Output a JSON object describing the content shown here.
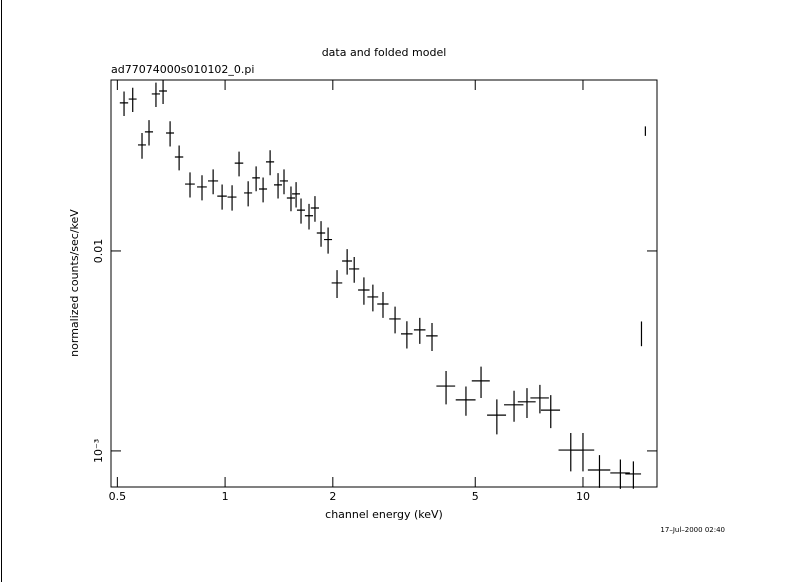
{
  "chart_data": {
    "type": "errorbar",
    "title": "data and folded model",
    "subtitle": "ad77074000s010102_0.pi",
    "x_label": "channel energy (keV)",
    "y_label": "normalized counts/sec/keV",
    "annotation": "17–Jul–2000 02:40",
    "x_log": true,
    "y_log": true,
    "color": "#000000",
    "xlim": [
      0.48,
      16.1
    ],
    "ylim": [
      0.00066,
      0.0716
    ],
    "xticks": [
      0.5,
      1,
      2,
      5,
      10
    ],
    "yticks": [
      0.01,
      {
        "value": 0.001,
        "label": "10⁻³"
      }
    ],
    "x": [
      0.522,
      0.552,
      0.586,
      0.613,
      0.641,
      0.671,
      0.702,
      0.744,
      0.798,
      0.862,
      0.926,
      0.981,
      1.046,
      1.094,
      1.16,
      1.221,
      1.277,
      1.336,
      1.406,
      1.461,
      1.528,
      1.579,
      1.63,
      1.716,
      1.783,
      1.854,
      1.94,
      2.055,
      2.193,
      2.295,
      2.443,
      2.588,
      2.762,
      2.985,
      3.221,
      3.5,
      3.786,
      4.144,
      4.71,
      5.19,
      5.746,
      6.418,
      6.975,
      7.58,
      8.128,
      9.245,
      10.0,
      11.12,
      12.72,
      13.83,
      14.94,
      14.57
    ],
    "xerr": [
      0.014,
      0.014,
      0.015,
      0.016,
      0.017,
      0.017,
      0.018,
      0.02,
      0.025,
      0.027,
      0.03,
      0.03,
      0.03,
      0.03,
      0.03,
      0.03,
      0.033,
      0.035,
      0.036,
      0.038,
      0.04,
      0.04,
      0.042,
      0.045,
      0.047,
      0.05,
      0.05,
      0.07,
      0.07,
      0.075,
      0.09,
      0.09,
      0.1,
      0.11,
      0.12,
      0.13,
      0.14,
      0.25,
      0.3,
      0.3,
      0.35,
      0.4,
      0.4,
      0.45,
      0.5,
      0.7,
      0.75,
      0.8,
      0.8,
      0.7,
      0.02,
      0
    ],
    "values": [
      0.055,
      0.0575,
      0.0339,
      0.0394,
      0.061,
      0.0631,
      0.0389,
      0.0295,
      0.0216,
      0.0209,
      0.0224,
      0.0188,
      0.0186,
      0.0275,
      0.0195,
      0.0232,
      0.0204,
      0.0279,
      0.0214,
      0.0224,
      0.0184,
      0.0193,
      0.016,
      0.015,
      0.0164,
      0.0123,
      0.0114,
      0.00692,
      0.00891,
      0.00813,
      0.00638,
      0.00589,
      0.00543,
      0.00457,
      0.00385,
      0.00403,
      0.00376,
      0.00211,
      0.0018,
      0.00224,
      0.00151,
      0.0017,
      0.00176,
      0.00184,
      0.0016,
      0.00101,
      0.00101,
      0.000803,
      0.000776,
      0.000767,
      0.0398,
      0.00389
    ],
    "yerr": [
      0.0077,
      0.008,
      0.005,
      0.0057,
      0.0085,
      0.0088,
      0.0056,
      0.0042,
      0.0031,
      0.003,
      0.0032,
      0.0027,
      0.0027,
      0.0039,
      0.0028,
      0.0033,
      0.0029,
      0.004,
      0.0031,
      0.0032,
      0.0026,
      0.0028,
      0.0023,
      0.0022,
      0.0024,
      0.0018,
      0.0017,
      0.0011,
      0.0013,
      0.0012,
      0.001,
      0.0009,
      0.0008,
      0.0007,
      0.0006,
      0.0006,
      0.0006,
      0.0004,
      0.0003,
      0.0004,
      0.0003,
      0.0003,
      0.0003,
      0.0003,
      0.0003,
      0.00022,
      0.00022,
      0.00015,
      0.00013,
      0.00012,
      0.0022,
      0.00055
    ]
  }
}
